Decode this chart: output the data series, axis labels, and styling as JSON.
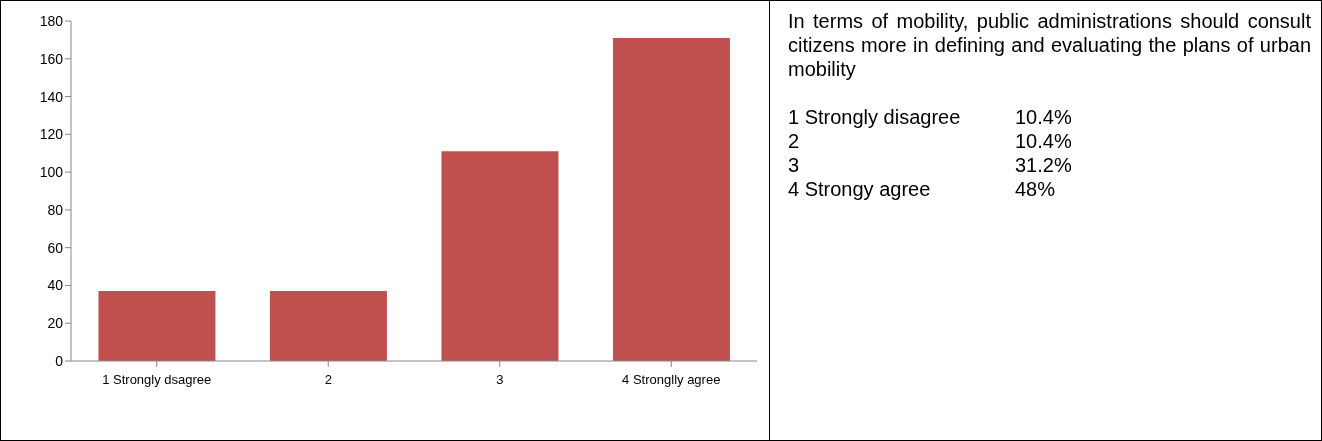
{
  "chart_data": [
    {
      "type": "bar",
      "categories": [
        "1 Strongly dsagree",
        "2",
        "3",
        "4 Stronglly agree"
      ],
      "values": [
        37,
        37,
        111,
        171
      ],
      "color": "#c0504d",
      "ylim": [
        0,
        180
      ],
      "yticks": [
        0,
        20,
        40,
        60,
        80,
        100,
        120,
        140,
        160,
        180
      ],
      "grid": false,
      "legend": false
    },
    {
      "type": "other",
      "title": "In terms of mobility, public administrations should consult citizens more in defining and evaluating the plans of urban mobility",
      "categories": [
        "1 Strongly disagree",
        "2",
        "3",
        "4 Strongy agree"
      ],
      "value_labels": [
        "10.4%",
        "10.4%",
        "31.2%",
        "48%"
      ]
    }
  ]
}
